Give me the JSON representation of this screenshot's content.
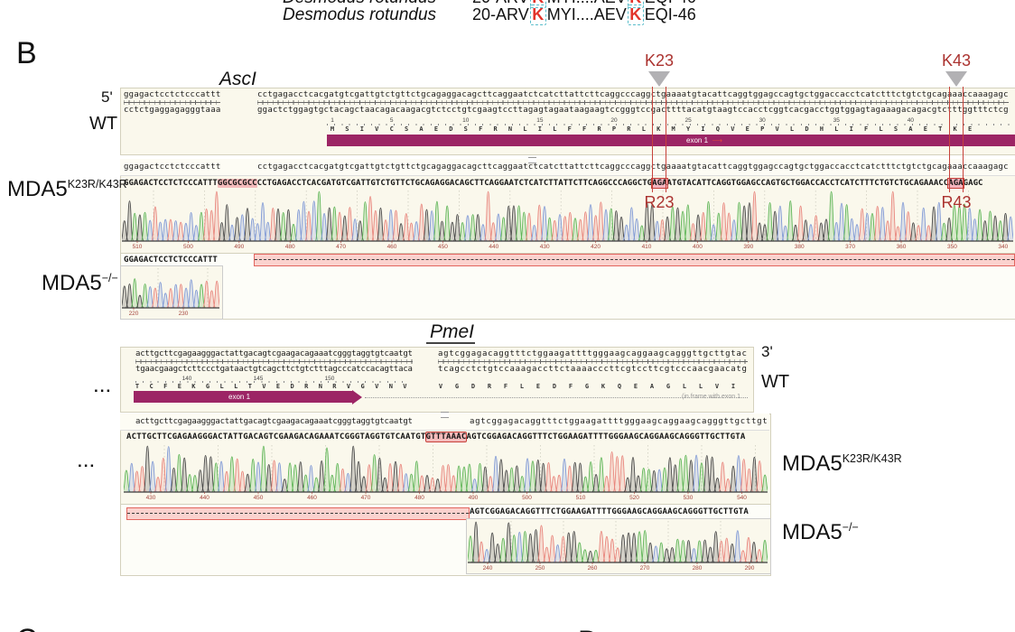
{
  "panel": {
    "b": "B",
    "c": "C",
    "d": "D"
  },
  "header": {
    "species": "Desmodus rotundus",
    "seq_prefix": "20-ARV",
    "k1": "K",
    "seq_mid": "MYI....AEV",
    "k2": "K",
    "seq_suffix": "EQI-46"
  },
  "ellipsis": "...",
  "ascl": {
    "enzyme": "AscI",
    "five_prime": "5'",
    "wt_label": "WT",
    "wt": {
      "top_left": "ggagactcctctcccattt",
      "top_right": "cctgagacctcacgatgtcgattgtctgttctgcagaggacagcttcaggaatctcatcttattcttcaggcccaggctgaaaatgtacattcaggtggagccagtgctggaccacctcatctttctgtctgcagaaaccaaagagc",
      "bottom_left": "cctctgaggagagggtaaa",
      "bottom_right": "ggactctggagtgctacagctaacagacaagacgtctcctgtcgaagtccttagagtagaataagaagtccgggtccgacttttacatgtaagtccacctcggtcacgacctggtggagtagaaagacagacgtctttggtttctcg",
      "ruler_one": "1",
      "ruler_numbers": [
        "5",
        "10",
        "15",
        "20",
        "25",
        "30",
        "35",
        "40"
      ],
      "aa": [
        "M",
        "S",
        "I",
        "V",
        "C",
        "S",
        "A",
        "E",
        "D",
        "S",
        "F",
        "R",
        "N",
        "L",
        "I",
        "L",
        "F",
        "F",
        "R",
        "P",
        "R",
        "L",
        "K",
        "M",
        "Y",
        "I",
        "Q",
        "V",
        "E",
        "P",
        "V",
        "L",
        "D",
        "H",
        "L",
        "I",
        "F",
        "L",
        "S",
        "A",
        "E",
        "T",
        "K",
        "E"
      ],
      "exon_label": "exon 1",
      "exon_arrow": "⟶",
      "k23": "K23",
      "k43": "K43"
    },
    "mut": {
      "label_base": "MDA5",
      "label_sup": "K23R/K43R",
      "ref_left": "ggagactcctctcccattt",
      "ref_right": "cctgagacctcacgatgtcgattgtctgttctgcagaggacagcttcaggaatctcatcttattcttcaggcccaggctgaaaatgtacattcaggtggagccagtgctggaccacctcatctttctgtctgcagaaaccaaagagc",
      "p1": "GGAGACTCCTCTCCCATTT",
      "site": "GGCGCGCC",
      "p2": "CCTGAGACCTCACGATGTCGATTGTCTGTTCTGCAGAGGACAGCTTCAGGAATCTCATCTTATTCTTCAGGCCCAGGCTG",
      "codon23": "AGA",
      "p3": "ATGTACATTCAGGTGGAGCCAGTGCTGGACCACCTCATCTTTCTGTCTGCAGAAACC",
      "codon43": "AGA",
      "p4": "GAGC",
      "r23": "R23",
      "r43": "R43",
      "trace_numbers": [
        "510",
        "500",
        "490",
        "480",
        "470",
        "460",
        "450",
        "440",
        "430",
        "420",
        "410",
        "400",
        "390",
        "380",
        "370",
        "360",
        "350",
        "340"
      ]
    },
    "ko": {
      "label_base": "MDA5",
      "label_sup": "−/−",
      "seq": "GGAGACTCCTCTCCCATTT",
      "trace_numbers": [
        "220",
        "230"
      ]
    }
  },
  "pmel": {
    "enzyme": "PmeI",
    "three_prime": "3'",
    "wt_label": "WT",
    "wt": {
      "top_left": "acttgcttcgagaagggactattgacagtcgaagacagaaatcgggtaggtgtcaatgt",
      "top_right": "agtcggagacaggtttctggaagattttgggaagcaggaagcagggttgcttgtac",
      "bottom_left": "tgaacgaagctcttccctgataactgtcagcttctgtctttagcccatccacagttaca",
      "bottom_right": "tcagcctctgtccaaagaccttctaaaacccttcgtccttcgtcccaacgaacatg",
      "ruler_numbers": [
        "140",
        "145",
        "150"
      ],
      "aa_left": [
        "T",
        "C",
        "F",
        "E",
        "K",
        "G",
        "L",
        "L",
        "T",
        "V",
        "E",
        "D",
        "R",
        "N",
        "R",
        "V",
        "G",
        "V",
        "N",
        "V"
      ],
      "aa_right": [
        "V",
        "G",
        "D",
        "R",
        "F",
        "L",
        "E",
        "D",
        "F",
        "G",
        "K",
        "Q",
        "E",
        "A",
        "G",
        "L",
        "L",
        "V",
        "I"
      ],
      "exon_label": "exon 1",
      "in_frame_note": "(in frame with exon 1"
    },
    "mut": {
      "label_base": "MDA5",
      "label_sup": "K23R/K43R",
      "ref_left": "acttgcttcgagaagggactattgacagtcgaagacagaaatcgggtaggtgtcaatgt",
      "ref_right": "agtcggagacaggtttctggaagattttgggaagcaggaagcagggttgcttgta",
      "p1": "ACTTGCTTCGAGAAGGGACTATTGACAGTCGAAGACAGAAATCGGGTAGGTGTCAATGT",
      "site": "GTTTAAAC",
      "p2": "AGTCGGAGACAGGTTTCTGGAAGATTTTGGGAAGCAGGAAGCAGGGTTGCTTGTA",
      "trace_numbers": [
        "430",
        "440",
        "450",
        "460",
        "470",
        "480",
        "490",
        "500",
        "510",
        "520",
        "530",
        "540"
      ]
    },
    "ko": {
      "label_base": "MDA5",
      "label_sup": "−/−",
      "seq": "AGTCGGAGACAGGTTTCTGGAAGATTTTGGGAAGCAGGAAGCAGGGTTGCTTGTA",
      "trace_numbers": [
        "240",
        "250",
        "260",
        "270",
        "280",
        "290"
      ]
    }
  }
}
